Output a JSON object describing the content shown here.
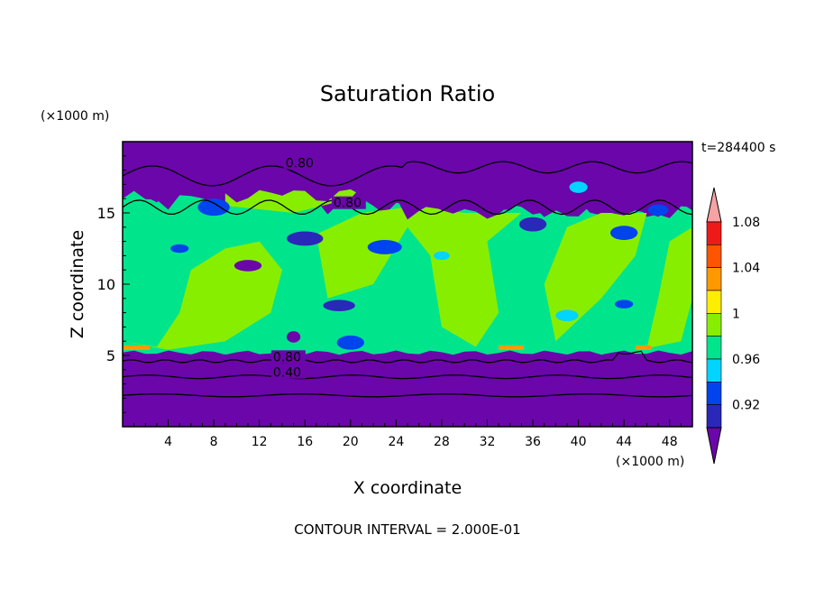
{
  "chart_data": {
    "type": "contour",
    "title": "Saturation Ratio",
    "xlabel": "X coordinate",
    "ylabel": "Z coordinate",
    "x_unit": "(×1000 m)",
    "z_unit": "(×1000 m)",
    "time_label": "t=284400 s",
    "footer": "CONTOUR INTERVAL = 2.000E-01",
    "xlim": [
      0,
      50
    ],
    "ylim": [
      0,
      20
    ],
    "x_ticks": [
      4,
      8,
      12,
      16,
      20,
      24,
      28,
      32,
      36,
      40,
      44,
      48
    ],
    "y_ticks": [
      5,
      10,
      15
    ],
    "colorbar": {
      "levels": [
        0.92,
        0.96,
        1,
        1.04,
        1.08
      ],
      "level_labels": [
        "0.92",
        "0.96",
        "1",
        "1.04",
        "1.08"
      ],
      "colors": [
        "#6a06aa",
        "#2a28b8",
        "#0044ee",
        "#00d4ff",
        "#00e58c",
        "#88ee00",
        "#ffee00",
        "#ff9900",
        "#ff5500",
        "#ee1a1a",
        "#f5a3a3"
      ]
    },
    "contour_labels": [
      {
        "text": "0.80",
        "x": 14.3,
        "z": 18.2
      },
      {
        "text": "0.80",
        "x": 18.5,
        "z": 15.4
      },
      {
        "text": "0.80",
        "x": 13.2,
        "z": 4.6
      },
      {
        "text": "0.40",
        "x": 13.2,
        "z": 3.5
      }
    ],
    "regions": {
      "lower_dry_top": 5.0,
      "cloud_bottom": 5.2,
      "cloud_top_left": 16.0,
      "cloud_top_right": 15.0,
      "upper_dry_bottom": 16.0
    }
  }
}
